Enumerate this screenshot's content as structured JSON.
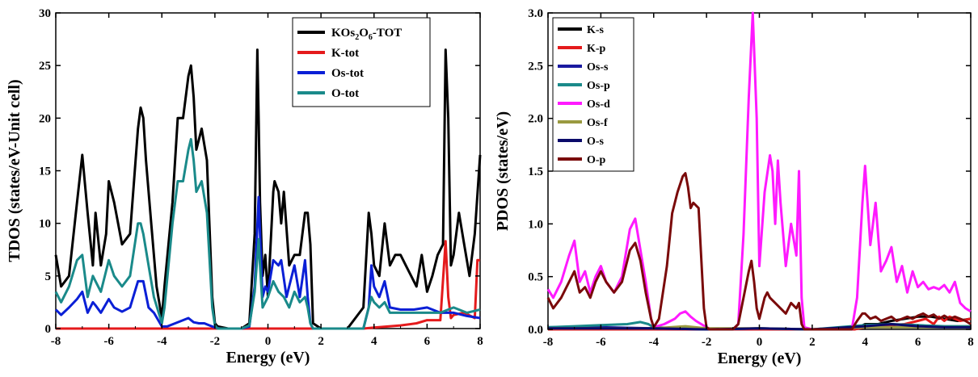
{
  "chart_data": [
    {
      "type": "line",
      "xlabel": "Energy (eV)",
      "ylabel": "TDOS (states/eV-Unit cell)",
      "xlim": [
        -8,
        8
      ],
      "ylim": [
        0,
        30
      ],
      "xticks": [
        "-8",
        "-6",
        "-4",
        "-2",
        "0",
        "2",
        "4",
        "6",
        "8"
      ],
      "yticks": [
        "0",
        "5",
        "10",
        "15",
        "20",
        "25",
        "30"
      ],
      "legend_position": "top-right",
      "series": [
        {
          "name": "KOs2O6-TOT",
          "color": "#000000",
          "x": [
            -8,
            -7.8,
            -7.5,
            -7.2,
            -7,
            -6.8,
            -6.6,
            -6.5,
            -6.3,
            -6.1,
            -6,
            -5.8,
            -5.5,
            -5.2,
            -4.9,
            -4.8,
            -4.7,
            -4.6,
            -4.4,
            -4.2,
            -4,
            -3.9,
            -3.6,
            -3.4,
            -3.2,
            -3.0,
            -2.9,
            -2.8,
            -2.7,
            -2.5,
            -2.3,
            -2.1,
            -2.0,
            -1.9,
            -1.5,
            -1.0,
            -0.7,
            -0.5,
            -0.4,
            -0.35,
            -0.3,
            -0.2,
            -0.1,
            0,
            0.2,
            0.25,
            0.4,
            0.5,
            0.6,
            0.8,
            1.0,
            1.2,
            1.4,
            1.5,
            1.6,
            1.7,
            2,
            3,
            3.6,
            3.8,
            3.9,
            4.0,
            4.2,
            4.4,
            4.6,
            4.8,
            5.0,
            5.2,
            5.4,
            5.6,
            5.8,
            6.0,
            6.2,
            6.4,
            6.6,
            6.7,
            6.8,
            6.9,
            7.0,
            7.2,
            7.4,
            7.6,
            7.8,
            8
          ],
          "y": [
            7,
            4,
            5,
            12,
            16.5,
            11,
            6,
            11,
            6,
            9,
            14,
            12,
            8,
            9,
            19,
            21,
            20,
            16,
            10,
            4,
            1,
            4,
            12,
            20,
            20,
            24,
            25,
            22,
            17,
            19,
            16,
            3,
            0.5,
            0.2,
            0,
            0,
            0.5,
            9,
            26.5,
            20,
            12,
            5,
            7,
            3,
            13,
            14,
            13,
            10,
            13,
            6,
            7,
            7,
            11,
            11,
            8,
            0.5,
            0,
            0,
            2,
            11,
            9,
            6,
            5,
            10,
            6,
            7,
            7,
            6,
            5,
            4,
            7,
            3.5,
            5,
            7,
            8,
            26.5,
            20,
            6,
            7,
            11,
            8,
            5,
            9,
            16.5
          ]
        },
        {
          "name": "K-tot",
          "color": "#e41a1c",
          "x": [
            -8,
            -4,
            -2,
            0,
            2,
            3.6,
            4,
            5,
            5.6,
            6,
            6.5,
            6.7,
            6.8,
            6.9,
            7,
            7.4,
            7.8,
            7.9,
            8
          ],
          "y": [
            0,
            0,
            0,
            0,
            0,
            0,
            0.1,
            0.3,
            0.5,
            0.8,
            0.8,
            8.3,
            3,
            1,
            1.3,
            1.5,
            1,
            6.5,
            6.5
          ]
        },
        {
          "name": "Os-tot",
          "color": "#0a1fd6",
          "x": [
            -8,
            -7.8,
            -7.5,
            -7.2,
            -7,
            -6.8,
            -6.6,
            -6.5,
            -6.3,
            -6,
            -5.8,
            -5.5,
            -5.2,
            -4.9,
            -4.7,
            -4.5,
            -4.3,
            -4,
            -3.8,
            -3.5,
            -3.2,
            -3.0,
            -2.8,
            -2.6,
            -2.4,
            -2.2,
            -2.0,
            -1.8,
            -1,
            -0.7,
            -0.5,
            -0.35,
            -0.3,
            -0.2,
            -0.1,
            0,
            0.2,
            0.4,
            0.5,
            0.7,
            1.0,
            1.2,
            1.4,
            1.5,
            1.6,
            1.7,
            2,
            3.6,
            3.8,
            3.9,
            4.0,
            4.2,
            4.4,
            4.6,
            5,
            5.5,
            6,
            6.5,
            7,
            7.5,
            8
          ],
          "y": [
            1.8,
            1.3,
            2,
            2.8,
            3.5,
            1.5,
            2.5,
            2.2,
            1.5,
            2.8,
            2,
            1.6,
            2,
            4.5,
            4.5,
            2,
            1.5,
            0.2,
            0.2,
            0.5,
            0.8,
            1,
            0.6,
            0.5,
            0.5,
            0.3,
            0.1,
            0,
            0,
            0.2,
            4,
            12.5,
            9,
            3,
            4,
            3.5,
            6.5,
            6,
            6.5,
            3,
            6,
            3,
            6.5,
            3,
            0.5,
            0,
            0,
            0,
            2,
            6,
            4,
            3,
            4.5,
            2,
            1.8,
            1.8,
            2,
            1.5,
            1.5,
            1.2,
            1
          ]
        },
        {
          "name": "O-tot",
          "color": "#1a8a8a",
          "x": [
            -8,
            -7.8,
            -7.5,
            -7.2,
            -7,
            -6.8,
            -6.6,
            -6.5,
            -6.3,
            -6,
            -5.8,
            -5.5,
            -5.2,
            -4.9,
            -4.8,
            -4.7,
            -4.5,
            -4.3,
            -4,
            -3.9,
            -3.6,
            -3.4,
            -3.2,
            -3.0,
            -2.9,
            -2.8,
            -2.7,
            -2.5,
            -2.3,
            -2.1,
            -2.0,
            -1.9,
            -1,
            -0.7,
            -0.5,
            -0.35,
            -0.3,
            -0.2,
            0,
            0.2,
            0.4,
            0.6,
            0.8,
            1.0,
            1.2,
            1.4,
            1.5,
            1.6,
            1.7,
            2,
            3.6,
            3.8,
            3.9,
            4.0,
            4.2,
            4.4,
            4.6,
            5,
            5.5,
            6,
            6.5,
            7,
            7.5,
            8
          ],
          "y": [
            3.5,
            2.5,
            4,
            6.5,
            7,
            3,
            5,
            4.5,
            3.5,
            6.5,
            5,
            4,
            5,
            10,
            10,
            9,
            6,
            3,
            0.5,
            2,
            10,
            14,
            14,
            17,
            18,
            16,
            13,
            14,
            11,
            2,
            0.3,
            0,
            0,
            0.3,
            3.5,
            8.5,
            6,
            2,
            3,
            4.5,
            3.5,
            3,
            2,
            3.5,
            2.5,
            3,
            2,
            0.5,
            0,
            0,
            0,
            2,
            3,
            2.5,
            2,
            2.5,
            1.5,
            1.5,
            1.5,
            1.5,
            1.5,
            2,
            1.5,
            1.8
          ]
        }
      ]
    },
    {
      "type": "line",
      "xlabel": "Energy (eV)",
      "ylabel": "PDOS (states/eV)",
      "xlim": [
        -8,
        8
      ],
      "ylim": [
        0,
        3.0
      ],
      "xticks": [
        "-8",
        "-6",
        "-4",
        "-2",
        "0",
        "2",
        "4",
        "6",
        "8"
      ],
      "yticks": [
        "0.0",
        "0.5",
        "1.0",
        "1.5",
        "2.0",
        "2.5",
        "3.0"
      ],
      "legend_position": "top-left",
      "series": [
        {
          "name": "K-s",
          "color": "#000000",
          "x": [
            -8,
            -4,
            -2,
            0,
            2,
            3.6,
            4,
            4.5,
            5,
            5.5,
            6,
            6.5,
            7,
            7.5,
            8
          ],
          "y": [
            0,
            0,
            0,
            0,
            0,
            0,
            0.05,
            0.05,
            0.08,
            0.1,
            0.12,
            0.12,
            0.1,
            0.08,
            0.1
          ]
        },
        {
          "name": "K-p",
          "color": "#e41a1c",
          "x": [
            -8,
            -4,
            -2,
            0,
            2,
            3.6,
            4,
            5,
            5.5,
            6,
            6.3,
            6.6,
            6.8,
            7,
            7.2,
            7.6,
            8
          ],
          "y": [
            0,
            0,
            0,
            0,
            0,
            0,
            0.02,
            0.04,
            0.05,
            0.08,
            0.1,
            0.05,
            0.12,
            0.08,
            0.12,
            0.08,
            0.1
          ]
        },
        {
          "name": "Os-s",
          "color": "#1a1aa0",
          "x": [
            -8,
            -6,
            -4,
            -2,
            0,
            2,
            4,
            6,
            8
          ],
          "y": [
            0.02,
            0.02,
            0.01,
            0,
            0.01,
            0,
            0.02,
            0.02,
            0.02
          ]
        },
        {
          "name": "Os-p",
          "color": "#1a8a8a",
          "x": [
            -8,
            -7,
            -6,
            -5,
            -4.5,
            -4.2,
            -4,
            -2,
            0,
            2,
            4,
            5,
            6,
            7,
            8
          ],
          "y": [
            0.02,
            0.03,
            0.04,
            0.05,
            0.07,
            0.05,
            0.02,
            0,
            0.01,
            0,
            0.04,
            0.05,
            0.04,
            0.03,
            0.03
          ]
        },
        {
          "name": "Os-d",
          "color": "#ff1aff",
          "x": [
            -8,
            -7.8,
            -7.5,
            -7.2,
            -7.0,
            -6.8,
            -6.6,
            -6.4,
            -6.2,
            -6.0,
            -5.8,
            -5.5,
            -5.2,
            -4.9,
            -4.7,
            -4.5,
            -4.3,
            -4.1,
            -4.0,
            -3.6,
            -3.2,
            -3.0,
            -2.8,
            -2.6,
            -2.4,
            -2.2,
            -2.0,
            -1.8,
            -1.0,
            -0.8,
            -0.6,
            -0.4,
            -0.25,
            -0.1,
            0.0,
            0.2,
            0.4,
            0.5,
            0.6,
            0.7,
            0.8,
            1.0,
            1.2,
            1.4,
            1.5,
            1.6,
            1.7,
            2,
            3.5,
            3.7,
            3.9,
            4.0,
            4.2,
            4.4,
            4.6,
            4.8,
            5.0,
            5.2,
            5.4,
            5.6,
            5.8,
            6.0,
            6.2,
            6.4,
            6.6,
            6.8,
            7.0,
            7.2,
            7.4,
            7.6,
            7.8,
            8
          ],
          "y": [
            0.38,
            0.3,
            0.45,
            0.7,
            0.84,
            0.45,
            0.55,
            0.35,
            0.5,
            0.6,
            0.45,
            0.35,
            0.5,
            0.95,
            1.05,
            0.75,
            0.45,
            0.1,
            0.02,
            0.05,
            0.1,
            0.15,
            0.17,
            0.12,
            0.08,
            0.05,
            0.02,
            0,
            0,
            0.05,
            0.9,
            2.2,
            3.0,
            2.0,
            0.6,
            1.3,
            1.65,
            1.5,
            1.0,
            1.6,
            1.2,
            0.6,
            1.0,
            0.7,
            1.5,
            0.3,
            0.02,
            0,
            0,
            0.3,
            1.2,
            1.55,
            0.8,
            1.2,
            0.55,
            0.65,
            0.78,
            0.45,
            0.6,
            0.35,
            0.55,
            0.4,
            0.45,
            0.38,
            0.4,
            0.38,
            0.42,
            0.35,
            0.45,
            0.25,
            0.2,
            0.17
          ]
        },
        {
          "name": "Os-f",
          "color": "#9a9a40",
          "x": [
            -8,
            -6,
            -4,
            -2.8,
            -2,
            0,
            2,
            4,
            6,
            8
          ],
          "y": [
            0.01,
            0.01,
            0.01,
            0.03,
            0.01,
            0.01,
            0,
            0.02,
            0.02,
            0.02
          ]
        },
        {
          "name": "O-s",
          "color": "#0a0a6a",
          "x": [
            -8,
            -6,
            -4,
            -2,
            0,
            2,
            4,
            4.5,
            5,
            6,
            7,
            8
          ],
          "y": [
            0.01,
            0.01,
            0.01,
            0,
            0.01,
            0,
            0.03,
            0.04,
            0.05,
            0.03,
            0.02,
            0.02
          ]
        },
        {
          "name": "O-p",
          "color": "#7a0a0a",
          "x": [
            -8,
            -7.8,
            -7.5,
            -7.2,
            -7.0,
            -6.8,
            -6.6,
            -6.4,
            -6.2,
            -6.0,
            -5.8,
            -5.5,
            -5.2,
            -4.9,
            -4.7,
            -4.5,
            -4.3,
            -4.1,
            -4.0,
            -3.8,
            -3.5,
            -3.3,
            -3.1,
            -2.9,
            -2.8,
            -2.7,
            -2.6,
            -2.5,
            -2.3,
            -2.1,
            -2.0,
            -1.9,
            -1.0,
            -0.8,
            -0.6,
            -0.4,
            -0.3,
            -0.2,
            -0.1,
            0,
            0.2,
            0.3,
            0.4,
            0.6,
            0.8,
            1.0,
            1.2,
            1.4,
            1.5,
            1.6,
            1.7,
            2,
            3.5,
            3.7,
            3.9,
            4.0,
            4.2,
            4.4,
            4.6,
            4.8,
            5.0,
            5.2,
            5.4,
            5.6,
            5.8,
            6.0,
            6.2,
            6.4,
            6.6,
            6.8,
            7.0,
            7.2,
            7.4,
            7.6,
            7.8,
            8
          ],
          "y": [
            0.3,
            0.2,
            0.3,
            0.45,
            0.55,
            0.35,
            0.4,
            0.3,
            0.45,
            0.55,
            0.45,
            0.35,
            0.45,
            0.75,
            0.82,
            0.65,
            0.35,
            0.1,
            0.02,
            0.1,
            0.6,
            1.1,
            1.3,
            1.45,
            1.48,
            1.35,
            1.15,
            1.2,
            1.15,
            0.2,
            0.02,
            0,
            0,
            0.05,
            0.3,
            0.55,
            0.65,
            0.45,
            0.2,
            0.1,
            0.3,
            0.35,
            0.3,
            0.25,
            0.2,
            0.15,
            0.25,
            0.2,
            0.25,
            0.05,
            0,
            0,
            0,
            0.08,
            0.15,
            0.15,
            0.1,
            0.12,
            0.08,
            0.1,
            0.12,
            0.08,
            0.1,
            0.12,
            0.1,
            0.13,
            0.15,
            0.12,
            0.14,
            0.1,
            0.13,
            0.1,
            0.12,
            0.1,
            0.08,
            0.05
          ]
        }
      ]
    }
  ],
  "legend1": {
    "entry0_main": "KOs",
    "entry0_sub1": "2",
    "entry0_mid": "O",
    "entry0_sub2": "6",
    "entry0_tail": "-TOT"
  }
}
